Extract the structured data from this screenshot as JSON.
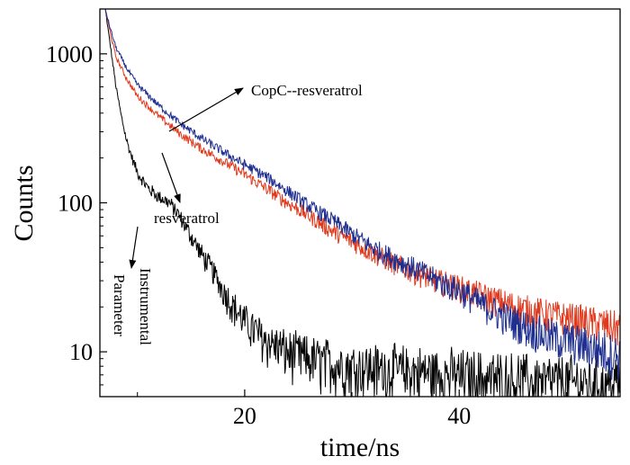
{
  "chart_data": {
    "type": "line",
    "title": "",
    "xlabel": "time/ns",
    "ylabel": "Counts",
    "xlim": [
      6.5,
      55
    ],
    "ylim": [
      5,
      2000
    ],
    "yscale": "log",
    "x_ticks": [
      20,
      40
    ],
    "y_ticks": [
      10,
      100,
      1000
    ],
    "grid": false,
    "legend": "none",
    "series": [
      {
        "key": "copc_resveratrol",
        "color": "#1f2f8f",
        "x": [
          7,
          7.5,
          8,
          9,
          10,
          12,
          14,
          16,
          18,
          20,
          22,
          24,
          26,
          28,
          30,
          32,
          34,
          36,
          38,
          40,
          42,
          44,
          46,
          48,
          50,
          52,
          54,
          55
        ],
        "y": [
          2000,
          1450,
          1100,
          800,
          620,
          450,
          340,
          270,
          220,
          180,
          150,
          120,
          95,
          78,
          62,
          50,
          42,
          36,
          30,
          26,
          21,
          17.5,
          15,
          13,
          12,
          11,
          10,
          9.5
        ]
      },
      {
        "key": "resveratrol",
        "color": "#e03a1e",
        "x": [
          7,
          7.5,
          8,
          9,
          10,
          12,
          14,
          16,
          18,
          20,
          22,
          24,
          26,
          28,
          30,
          32,
          34,
          36,
          38,
          40,
          42,
          44,
          46,
          48,
          50,
          52,
          54,
          55
        ],
        "y": [
          2000,
          1350,
          950,
          680,
          520,
          380,
          290,
          230,
          190,
          155,
          125,
          100,
          82,
          66,
          55,
          46,
          39,
          34,
          30,
          27,
          24,
          21.5,
          19.5,
          18,
          17,
          16,
          15,
          14.5
        ]
      },
      {
        "key": "instrumental",
        "color": "#000000",
        "x": [
          7,
          7.5,
          8,
          8.5,
          9,
          9.5,
          10,
          11,
          12,
          13,
          14,
          15,
          16,
          17,
          18,
          19,
          20,
          22,
          24,
          26,
          28,
          30,
          35,
          40,
          45,
          50,
          55
        ],
        "y": [
          2000,
          1100,
          600,
          380,
          260,
          200,
          160,
          125,
          110,
          100,
          80,
          60,
          45,
          35,
          26,
          20,
          16,
          12,
          10,
          9,
          8.5,
          8,
          7.5,
          7,
          6.5,
          6.2,
          6
        ]
      }
    ],
    "annotations": [
      {
        "key": "copc",
        "text": "CopC--resveratrol"
      },
      {
        "key": "res",
        "text": "resveratrol"
      },
      {
        "key": "inst1",
        "text": "Instrumental"
      },
      {
        "key": "inst2",
        "text": "Parameter"
      }
    ]
  }
}
